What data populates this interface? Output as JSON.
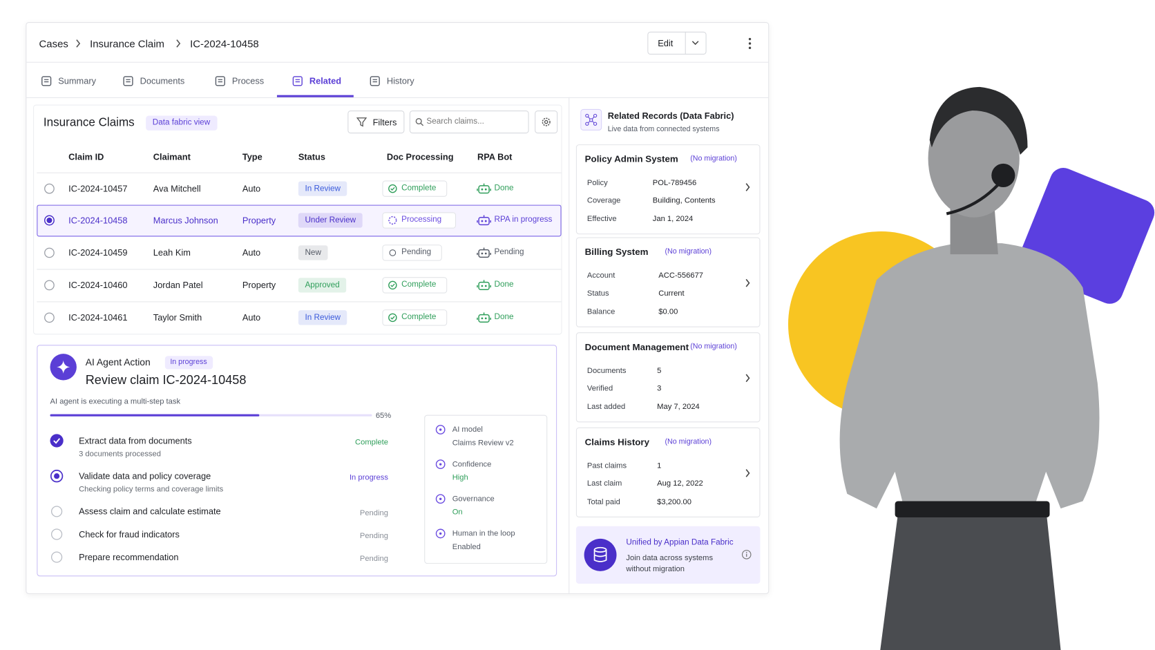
{
  "breadcrumb": [
    "Cases",
    "Insurance Claim",
    "IC-2024-10458"
  ],
  "edit": "Edit",
  "tabs": [
    "Summary",
    "Documents",
    "Process",
    "Related",
    "History"
  ],
  "claims": {
    "title": "Insurance Claims",
    "badge": "Data fabric view",
    "filters": "Filters",
    "search": "Search claims...",
    "columns": [
      "Claim ID",
      "Claimant",
      "Type",
      "Status",
      "Doc Processing",
      "RPA Bot"
    ],
    "rows": [
      {
        "id": "IC-2024-10457",
        "claimant": "Ava Mitchell",
        "type": "Auto",
        "status": {
          "text": "In Review",
          "color": "#3b5bdb"
        },
        "doc": {
          "text": "Complete",
          "color": "#2f9e5a"
        },
        "rpa": {
          "text": "Done",
          "color": "#2f9e5a"
        }
      },
      {
        "id": "IC-2024-10458",
        "claimant": "Marcus Johnson",
        "type": "Property",
        "status": {
          "text": "Under Review",
          "color": "#4a2fc9"
        },
        "doc": {
          "text": "Processing",
          "color": "#6a4be0"
        },
        "rpa": {
          "text": "RPA in progress",
          "color": "#5b3fd6"
        }
      },
      {
        "id": "IC-2024-10459",
        "claimant": "Leah Kim",
        "type": "Auto",
        "status": {
          "text": "New",
          "color": "#555b66"
        },
        "doc": {
          "text": "Pending",
          "color": "#555b66"
        },
        "rpa": {
          "text": "Pending",
          "color": "#555b66"
        }
      },
      {
        "id": "IC-2024-10460",
        "claimant": "Jordan Patel",
        "type": "Property",
        "status": {
          "text": "Approved",
          "color": "#2f9e5a"
        },
        "doc": {
          "text": "Complete",
          "color": "#2f9e5a"
        },
        "rpa": {
          "text": "Done",
          "color": "#2f9e5a"
        }
      },
      {
        "id": "IC-2024-10461",
        "claimant": "Taylor Smith",
        "type": "Auto",
        "status": {
          "text": "In Review",
          "color": "#3b5bdb"
        },
        "doc": {
          "text": "Complete",
          "color": "#2f9e5a"
        },
        "rpa": {
          "text": "Done",
          "color": "#2f9e5a"
        }
      }
    ]
  },
  "agent": {
    "label": "AI Agent Action",
    "badge": "In progress",
    "title": "Review claim IC-2024-10458",
    "subtitle": "AI agent is executing a multi-step task",
    "progress": {
      "value": 65,
      "label": "65%"
    },
    "steps": [
      {
        "title": "Extract data from documents",
        "detail": "3 documents processed",
        "status": "Complete",
        "color": "#2f9e5a"
      },
      {
        "title": "Validate data and policy coverage",
        "detail": "Checking policy terms and coverage limits",
        "status": "In progress",
        "color": "#5b3fd6"
      },
      {
        "title": "Assess claim and calculate estimate",
        "status": "Pending",
        "color": "#8a8f98"
      },
      {
        "title": "Check for fraud indicators",
        "status": "Pending",
        "color": "#8a8f98"
      },
      {
        "title": "Prepare recommendation",
        "status": "Pending",
        "color": "#8a8f98"
      }
    ],
    "info": [
      {
        "label": "AI model",
        "value": "Claims Review v2",
        "color": "#555b66"
      },
      {
        "label": "Confidence",
        "value": "High",
        "color": "#2f9e5a"
      },
      {
        "label": "Governance",
        "value": "On",
        "color": "#2f9e5a"
      },
      {
        "label": "Human in the loop",
        "value": "Enabled",
        "color": "#555b66"
      }
    ]
  },
  "related": {
    "title": "Related Records (Data Fabric)",
    "subtitle": "Live data from connected systems",
    "systems": [
      {
        "name": "Policy Admin System",
        "tag": "(No migration)",
        "fields": [
          {
            "label": "Policy",
            "value": "POL-789456"
          },
          {
            "label": "Coverage",
            "value": "Building, Contents"
          },
          {
            "label": "Effective",
            "value": "Jan 1, 2024"
          }
        ]
      },
      {
        "name": "Billing System",
        "tag": "(No migration)",
        "fields": [
          {
            "label": "Account",
            "value": "ACC-556677"
          },
          {
            "label": "Status",
            "value": "Current"
          },
          {
            "label": "Balance",
            "value": "$0.00"
          }
        ]
      },
      {
        "name": "Document Management",
        "tag": "(No migration)",
        "fields": [
          {
            "label": "Documents",
            "value": "5"
          },
          {
            "label": "Verified",
            "value": "3"
          },
          {
            "label": "Last added",
            "value": "May 7, 2024"
          }
        ]
      },
      {
        "name": "Claims History",
        "tag": "(No migration)",
        "fields": [
          {
            "label": "Past claims",
            "value": "1"
          },
          {
            "label": "Last claim",
            "value": "Aug 12, 2022"
          },
          {
            "label": "Total paid",
            "value": "$3,200.00"
          }
        ]
      }
    ],
    "footer": {
      "title": "Unified by Appian Data Fabric",
      "text": "Join data across systems without migration"
    }
  }
}
